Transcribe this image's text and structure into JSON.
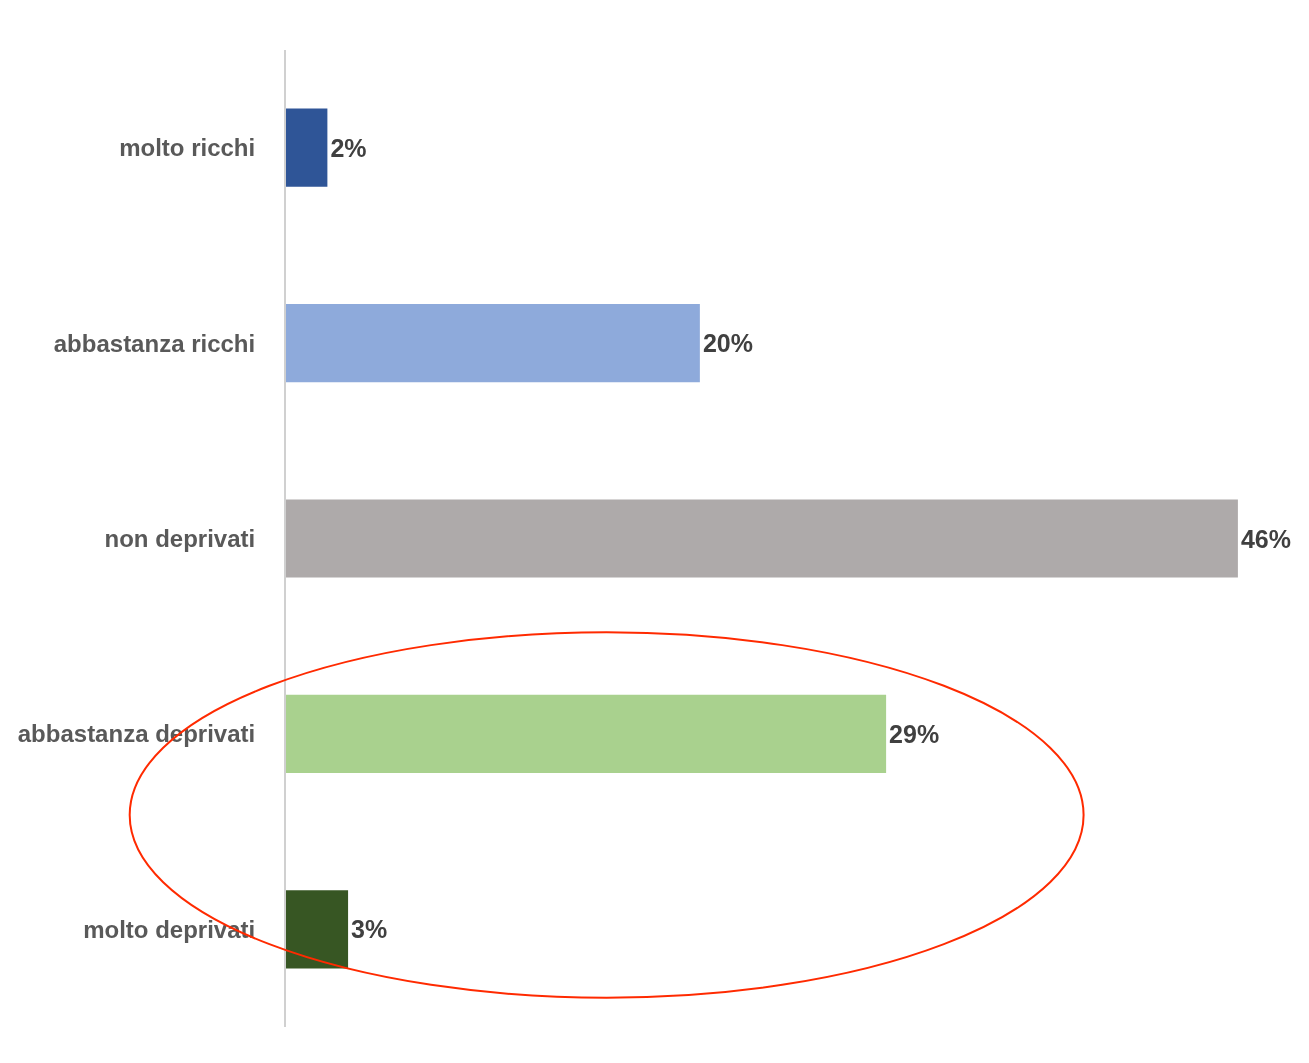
{
  "chart_data": {
    "type": "bar",
    "orientation": "horizontal",
    "categories": [
      "molto ricchi",
      "abbastanza ricchi",
      "non deprivati",
      "abbastanza deprivati",
      "molto deprivati"
    ],
    "values": [
      2,
      20,
      46,
      29,
      3
    ],
    "colors": [
      "#2f5597",
      "#8eaadb",
      "#aeaaaa",
      "#a9d18e",
      "#375623"
    ],
    "value_labels": [
      "2%",
      "20%",
      "46%",
      "29%",
      "3%"
    ],
    "tick_labels": "y"
  }
}
